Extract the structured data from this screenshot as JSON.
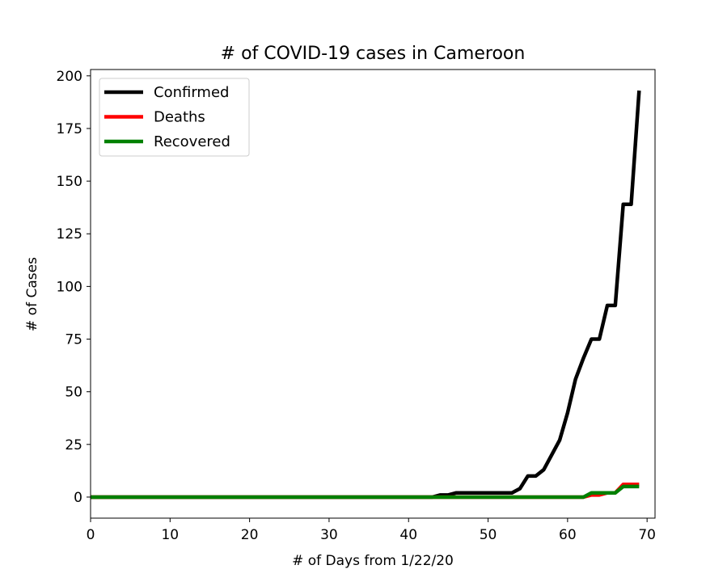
{
  "chart_data": {
    "type": "line",
    "title": "# of COVID-19 cases in Cameroon",
    "xlabel": "# of Days from 1/22/20",
    "ylabel": "# of Cases",
    "xlim": [
      0,
      71
    ],
    "ylim": [
      -10,
      203
    ],
    "xticks": [
      0,
      10,
      20,
      30,
      40,
      50,
      60,
      70
    ],
    "yticks": [
      0,
      25,
      50,
      75,
      100,
      125,
      150,
      175,
      200
    ],
    "grid": false,
    "legend": "top-left",
    "x": [
      0,
      1,
      2,
      3,
      4,
      5,
      6,
      7,
      8,
      9,
      10,
      11,
      12,
      13,
      14,
      15,
      16,
      17,
      18,
      19,
      20,
      21,
      22,
      23,
      24,
      25,
      26,
      27,
      28,
      29,
      30,
      31,
      32,
      33,
      34,
      35,
      36,
      37,
      38,
      39,
      40,
      41,
      42,
      43,
      44,
      45,
      46,
      47,
      48,
      49,
      50,
      51,
      52,
      53,
      54,
      55,
      56,
      57,
      58,
      59,
      60,
      61,
      62,
      63,
      64,
      65,
      66,
      67,
      68,
      69
    ],
    "series": [
      {
        "name": "Confirmed",
        "color": "#000000",
        "values": [
          0,
          0,
          0,
          0,
          0,
          0,
          0,
          0,
          0,
          0,
          0,
          0,
          0,
          0,
          0,
          0,
          0,
          0,
          0,
          0,
          0,
          0,
          0,
          0,
          0,
          0,
          0,
          0,
          0,
          0,
          0,
          0,
          0,
          0,
          0,
          0,
          0,
          0,
          0,
          0,
          0,
          0,
          0,
          0,
          1,
          1,
          2,
          2,
          2,
          2,
          2,
          2,
          2,
          2,
          4,
          10,
          10,
          13,
          20,
          27,
          40,
          56,
          66,
          75,
          75,
          91,
          91,
          139,
          139,
          193
        ]
      },
      {
        "name": "Deaths",
        "color": "#ff0000",
        "values": [
          0,
          0,
          0,
          0,
          0,
          0,
          0,
          0,
          0,
          0,
          0,
          0,
          0,
          0,
          0,
          0,
          0,
          0,
          0,
          0,
          0,
          0,
          0,
          0,
          0,
          0,
          0,
          0,
          0,
          0,
          0,
          0,
          0,
          0,
          0,
          0,
          0,
          0,
          0,
          0,
          0,
          0,
          0,
          0,
          0,
          0,
          0,
          0,
          0,
          0,
          0,
          0,
          0,
          0,
          0,
          0,
          0,
          0,
          0,
          0,
          0,
          0,
          0,
          1,
          1,
          2,
          2,
          6,
          6,
          6
        ]
      },
      {
        "name": "Recovered",
        "color": "#008000",
        "values": [
          0,
          0,
          0,
          0,
          0,
          0,
          0,
          0,
          0,
          0,
          0,
          0,
          0,
          0,
          0,
          0,
          0,
          0,
          0,
          0,
          0,
          0,
          0,
          0,
          0,
          0,
          0,
          0,
          0,
          0,
          0,
          0,
          0,
          0,
          0,
          0,
          0,
          0,
          0,
          0,
          0,
          0,
          0,
          0,
          0,
          0,
          0,
          0,
          0,
          0,
          0,
          0,
          0,
          0,
          0,
          0,
          0,
          0,
          0,
          0,
          0,
          0,
          0,
          2,
          2,
          2,
          2,
          5,
          5,
          5
        ]
      }
    ]
  }
}
